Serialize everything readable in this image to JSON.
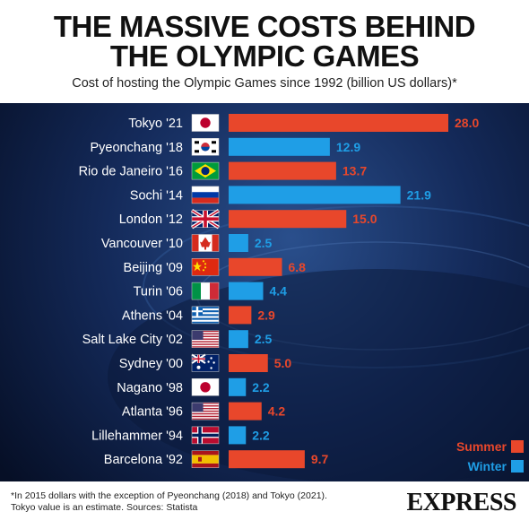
{
  "header": {
    "title_line1": "THE MASSIVE COSTS BEHIND",
    "title_line2": "THE OLYMPIC GAMES",
    "subtitle": "Cost of hosting the Olympic Games since 1992 (billion US dollars)*"
  },
  "colors": {
    "summer": "#e8472b",
    "winter": "#1f9ee6",
    "label_text": "#ffffff",
    "background": "#0b1a3c"
  },
  "chart_data": {
    "type": "bar",
    "orientation": "horizontal",
    "categories": [
      "Tokyo '21",
      "Pyeonchang '18",
      "Rio de Janeiro '16",
      "Sochi '14",
      "London '12",
      "Vancouver '10",
      "Beijing '09",
      "Turin '06",
      "Athens '04",
      "Salt Lake City '02",
      "Sydney '00",
      "Nagano '98",
      "Atlanta '96",
      "Lillehammer '94",
      "Barcelona '92"
    ],
    "values": [
      28.0,
      12.9,
      13.7,
      21.9,
      15.0,
      2.5,
      6.8,
      4.4,
      2.9,
      2.5,
      5.0,
      2.2,
      4.2,
      2.2,
      9.7
    ],
    "value_labels": [
      "28.0",
      "12.9",
      "13.7",
      "21.9",
      "15.0",
      "2.5",
      "6.8",
      "4.4",
      "2.9",
      "2.5",
      "5.0",
      "2.2",
      "4.2",
      "2.2",
      "9.7"
    ],
    "season": [
      "Summer",
      "Winter",
      "Summer",
      "Winter",
      "Summer",
      "Winter",
      "Summer",
      "Winter",
      "Summer",
      "Winter",
      "Summer",
      "Winter",
      "Summer",
      "Winter",
      "Summer"
    ],
    "flags": [
      "japan-flag",
      "south-korea-flag",
      "brazil-flag",
      "russia-flag",
      "uk-flag",
      "canada-flag",
      "china-flag",
      "italy-flag",
      "greece-flag",
      "usa-flag",
      "australia-flag",
      "japan-flag",
      "usa-flag",
      "norway-flag",
      "spain-flag"
    ],
    "xlim": [
      0,
      28
    ],
    "legend": [
      "Summer",
      "Winter"
    ],
    "legend_position": "bottom-right"
  },
  "footer": {
    "footnote_line1": "*In 2015 dollars with the exception of Pyeonchang (2018) and Tokyo (2021).",
    "footnote_line2": "Tokyo value is an estimate. Sources: Statista",
    "logo": "EXPRESS"
  }
}
